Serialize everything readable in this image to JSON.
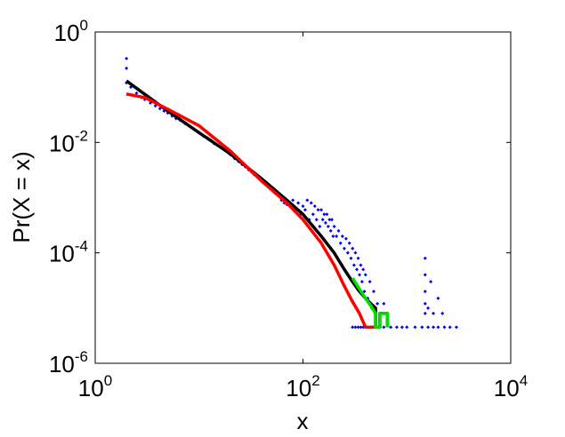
{
  "chart_data": {
    "type": "scatter",
    "xlabel": "x",
    "ylabel": "Pr(X = x)",
    "x_scale": "log",
    "y_scale": "log",
    "xlim": [
      1,
      10000
    ],
    "ylim": [
      1e-06,
      1
    ],
    "x_ticks": [
      {
        "base": "10",
        "exp": "0",
        "value": 1
      },
      {
        "base": "10",
        "exp": "2",
        "value": 100
      },
      {
        "base": "10",
        "exp": "4",
        "value": 10000
      }
    ],
    "y_ticks": [
      {
        "base": "10",
        "exp": "0",
        "value": 1
      },
      {
        "base": "10",
        "exp": "-2",
        "value": 0.01
      },
      {
        "base": "10",
        "exp": "-4",
        "value": 0.0001
      },
      {
        "base": "10",
        "exp": "-6",
        "value": 1e-06
      }
    ],
    "grid": false,
    "colors": {
      "scatter": "#0000ff",
      "line1": "#000000",
      "line2": "#ff0000",
      "line3": "#00dd00"
    },
    "series": [
      {
        "kind": "scatter",
        "color": "#0000ff",
        "points": [
          [
            2,
            0.33
          ],
          [
            2,
            0.22
          ],
          [
            2,
            0.12
          ],
          [
            2.2,
            0.1
          ],
          [
            2.5,
            0.078
          ],
          [
            2.8,
            0.065
          ],
          [
            3,
            0.06
          ],
          [
            3.4,
            0.052
          ],
          [
            3.8,
            0.046
          ],
          [
            4.2,
            0.041
          ],
          [
            4.6,
            0.037
          ],
          [
            5,
            0.034
          ],
          [
            5.5,
            0.03
          ],
          [
            6,
            0.027
          ],
          [
            6.6,
            0.025
          ],
          [
            7.3,
            0.022
          ],
          [
            8,
            0.02
          ],
          [
            9,
            0.017
          ],
          [
            10,
            0.015
          ],
          [
            11,
            0.013
          ],
          [
            12,
            0.012
          ],
          [
            13,
            0.011
          ],
          [
            14,
            0.0095
          ],
          [
            15,
            0.0088
          ],
          [
            16,
            0.0083
          ],
          [
            17,
            0.0078
          ],
          [
            18,
            0.007
          ],
          [
            19,
            0.0065
          ],
          [
            20,
            0.006
          ],
          [
            22,
            0.0051
          ],
          [
            24,
            0.0045
          ],
          [
            26,
            0.004
          ],
          [
            28,
            0.0036
          ],
          [
            30,
            0.0032
          ],
          [
            32,
            0.0029
          ],
          [
            34,
            0.0026
          ],
          [
            36,
            0.0024
          ],
          [
            38,
            0.0022
          ],
          [
            40,
            0.002
          ],
          [
            43,
            0.0018
          ],
          [
            46,
            0.0016
          ],
          [
            50,
            0.0014
          ],
          [
            54,
            0.0012
          ],
          [
            58,
            0.0011
          ],
          [
            62,
            0.0009
          ],
          [
            66,
            0.0008
          ],
          [
            70,
            0.00075
          ],
          [
            75,
            0.0007
          ],
          [
            80,
            0.0009
          ],
          [
            85,
            0.0006
          ],
          [
            90,
            0.0008
          ],
          [
            95,
            0.0005
          ],
          [
            100,
            0.0007
          ],
          [
            105,
            0.0006
          ],
          [
            110,
            0.0009
          ],
          [
            115,
            0.0004
          ],
          [
            120,
            0.0008
          ],
          [
            125,
            0.0005
          ],
          [
            130,
            0.0007
          ],
          [
            135,
            0.0004
          ],
          [
            140,
            0.0006
          ],
          [
            145,
            0.0003
          ],
          [
            150,
            0.0006
          ],
          [
            155,
            0.0004
          ],
          [
            160,
            0.0005
          ],
          [
            165,
            0.00035
          ],
          [
            170,
            0.0005
          ],
          [
            175,
            0.0003
          ],
          [
            180,
            0.0004
          ],
          [
            185,
            0.00025
          ],
          [
            190,
            0.0004
          ],
          [
            195,
            0.0002
          ],
          [
            200,
            0.0003
          ],
          [
            210,
            0.0002
          ],
          [
            220,
            0.00025
          ],
          [
            230,
            0.00015
          ],
          [
            240,
            0.0002
          ],
          [
            250,
            0.00012
          ],
          [
            260,
            0.00018
          ],
          [
            270,
            0.0001
          ],
          [
            280,
            0.00015
          ],
          [
            290,
            8e-05
          ],
          [
            300,
            0.00012
          ],
          [
            310,
            6e-05
          ],
          [
            320,
            0.0001
          ],
          [
            330,
            5e-05
          ],
          [
            340,
            8e-05
          ],
          [
            350,
            4e-05
          ],
          [
            360,
            6e-05
          ],
          [
            370,
            3e-05
          ],
          [
            380,
            5e-05
          ],
          [
            390,
            2e-05
          ],
          [
            400,
            4e-05
          ],
          [
            420,
            1.5e-05
          ],
          [
            440,
            3e-05
          ],
          [
            460,
            1e-05
          ],
          [
            480,
            2e-05
          ],
          [
            500,
            8e-06
          ],
          [
            520,
            1.2e-05
          ],
          [
            550,
            8e-06
          ],
          [
            600,
            1.2e-05
          ],
          [
            650,
            8e-06
          ],
          [
            300,
            4.5e-06
          ],
          [
            320,
            4.5e-06
          ],
          [
            340,
            4.5e-06
          ],
          [
            360,
            4.5e-06
          ],
          [
            380,
            4.5e-06
          ],
          [
            400,
            4.5e-06
          ],
          [
            450,
            4.5e-06
          ],
          [
            500,
            4.5e-06
          ],
          [
            550,
            4.5e-06
          ],
          [
            600,
            4.5e-06
          ],
          [
            700,
            4.5e-06
          ],
          [
            800,
            4.5e-06
          ],
          [
            900,
            4.5e-06
          ],
          [
            1000,
            4.5e-06
          ],
          [
            1200,
            4.5e-06
          ],
          [
            1400,
            4.5e-06
          ],
          [
            1600,
            4.5e-06
          ],
          [
            1800,
            4.5e-06
          ],
          [
            2000,
            4.5e-06
          ],
          [
            2300,
            4.5e-06
          ],
          [
            2600,
            4.5e-06
          ],
          [
            3000,
            4.5e-06
          ],
          [
            1500,
            8e-06
          ],
          [
            1500,
            1.2e-05
          ],
          [
            1500,
            2e-05
          ],
          [
            1500,
            4e-05
          ],
          [
            1500,
            8e-05
          ],
          [
            1600,
            1e-05
          ],
          [
            1700,
            3e-05
          ],
          [
            1800,
            8e-06
          ],
          [
            2200,
            8e-06
          ],
          [
            2000,
            1.5e-05
          ]
        ]
      },
      {
        "kind": "line",
        "color": "#000000",
        "points": [
          [
            2,
            0.13
          ],
          [
            5,
            0.037
          ],
          [
            10,
            0.015
          ],
          [
            20,
            0.0062
          ],
          [
            40,
            0.0022
          ],
          [
            70,
            0.0009
          ],
          [
            100,
            0.0005
          ],
          [
            150,
            0.0002
          ],
          [
            200,
            0.0001
          ],
          [
            250,
            5e-05
          ],
          [
            300,
            3e-05
          ],
          [
            350,
            2e-05
          ],
          [
            400,
            1.5e-05
          ],
          [
            450,
            1.2e-05
          ],
          [
            500,
            1e-05
          ],
          [
            500,
            4.5e-06
          ],
          [
            550,
            4.5e-06
          ],
          [
            550,
            8e-06
          ],
          [
            600,
            8e-06
          ],
          [
            650,
            8e-06
          ],
          [
            650,
            4.5e-06
          ]
        ]
      },
      {
        "kind": "line",
        "color": "#ff0000",
        "points": [
          [
            2,
            0.075
          ],
          [
            3,
            0.065
          ],
          [
            5,
            0.04
          ],
          [
            10,
            0.02
          ],
          [
            20,
            0.007
          ],
          [
            40,
            0.002
          ],
          [
            70,
            0.0008
          ],
          [
            100,
            0.0004
          ],
          [
            150,
            0.00015
          ],
          [
            200,
            6e-05
          ],
          [
            250,
            2.5e-05
          ],
          [
            300,
            1.3e-05
          ],
          [
            350,
            8e-06
          ],
          [
            400,
            4.5e-06
          ],
          [
            500,
            4.5e-06
          ]
        ]
      },
      {
        "kind": "line",
        "color": "#00dd00",
        "points": [
          [
            300,
            3.5e-05
          ],
          [
            350,
            2.2e-05
          ],
          [
            400,
            1.5e-05
          ],
          [
            450,
            1.1e-05
          ],
          [
            500,
            8e-06
          ],
          [
            500,
            4.5e-06
          ],
          [
            550,
            4.5e-06
          ],
          [
            550,
            8e-06
          ],
          [
            600,
            8e-06
          ],
          [
            650,
            8e-06
          ],
          [
            650,
            4.5e-06
          ]
        ]
      }
    ]
  }
}
